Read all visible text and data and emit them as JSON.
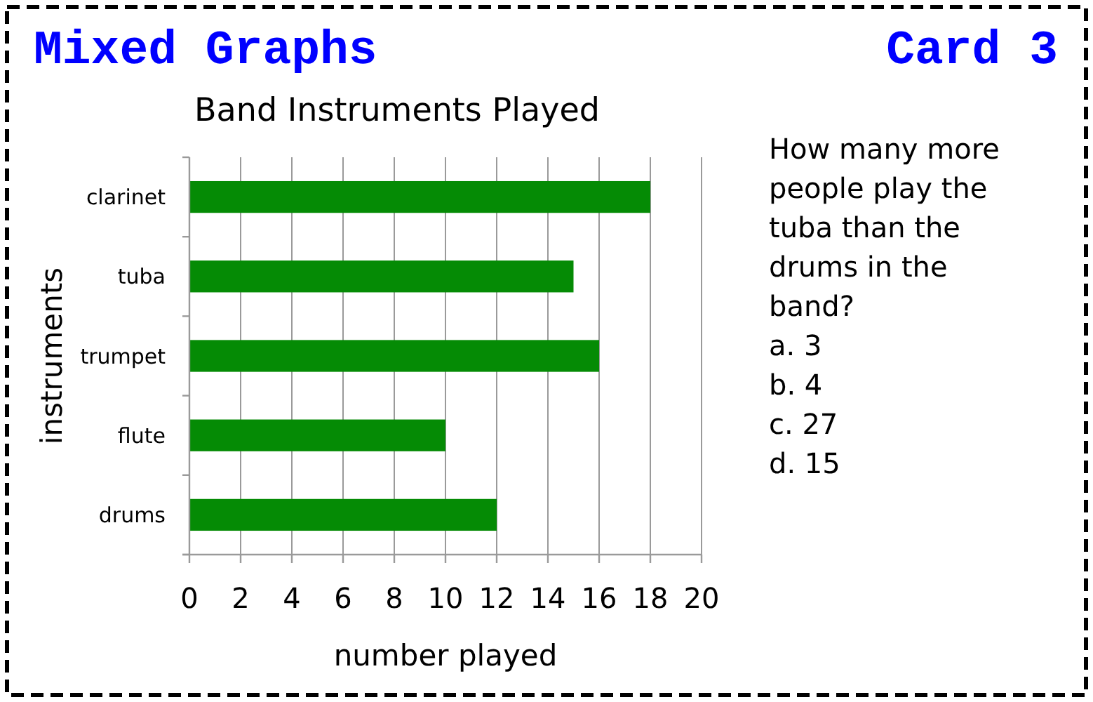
{
  "chart_data": {
    "type": "bar",
    "orientation": "horizontal",
    "title": "Band Instruments Played",
    "xlabel": "number played",
    "ylabel": "instruments",
    "categories": [
      "clarinet",
      "tuba",
      "trumpet",
      "flute",
      "drums"
    ],
    "values": [
      18,
      15,
      16,
      10,
      12
    ],
    "color": "#058b05",
    "xlim": [
      0,
      20
    ],
    "xticks": [
      0,
      2,
      4,
      6,
      8,
      10,
      12,
      14,
      16,
      18,
      20
    ],
    "grid": "x",
    "annotations": [
      "Mixed Graphs",
      "Card 3",
      "How many more people play the tuba than the drums in the band?",
      "a. 3",
      "b. 4",
      "c. 27",
      "d. 15"
    ]
  }
}
